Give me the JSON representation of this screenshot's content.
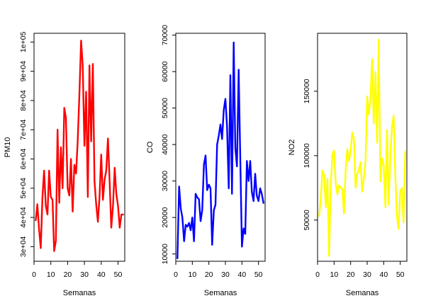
{
  "chart_data": [
    {
      "type": "line",
      "xlabel": "Semanas",
      "ylabel": "PM10",
      "color": "#ff0000",
      "xlim": [
        0,
        54
      ],
      "ylim": [
        25000,
        103000
      ],
      "xticks": [
        0,
        10,
        20,
        30,
        40,
        50
      ],
      "xtick_labels": [
        "0",
        "10",
        "20",
        "30",
        "40",
        "50"
      ],
      "yticks": [
        30000,
        40000,
        50000,
        60000,
        70000,
        80000,
        90000,
        100000
      ],
      "ytick_labels": [
        "3e+04",
        "4e+04",
        "5e+04",
        "6e+04",
        "7e+04",
        "8e+04",
        "9e+04",
        "1e+05"
      ],
      "x": [
        1,
        2,
        3,
        4,
        5,
        6,
        7,
        8,
        9,
        10,
        11,
        12,
        13,
        14,
        15,
        16,
        17,
        18,
        19,
        20,
        21,
        22,
        23,
        24,
        25,
        26,
        27,
        28,
        29,
        30,
        31,
        32,
        33,
        34,
        35,
        36,
        37,
        38,
        39,
        40,
        41,
        42,
        43,
        44,
        45,
        46,
        47,
        48,
        49,
        50,
        51,
        52,
        53
      ],
      "values": [
        39000,
        44500,
        36000,
        29500,
        47000,
        56000,
        44000,
        41000,
        56000,
        47000,
        46000,
        28500,
        32000,
        70000,
        45000,
        64000,
        50000,
        77500,
        74000,
        50000,
        47500,
        60000,
        42000,
        58000,
        55000,
        66000,
        82000,
        100500,
        92000,
        64500,
        83000,
        47000,
        92000,
        66000,
        92500,
        52500,
        44500,
        38500,
        47000,
        61500,
        46000,
        53000,
        56000,
        67000,
        52000,
        36500,
        44000,
        57000,
        48000,
        44000,
        36500,
        41000,
        41000
      ]
    },
    {
      "type": "line",
      "xlabel": "Semanas",
      "ylabel": "CO",
      "color": "#0000ff",
      "xlim": [
        0,
        54
      ],
      "ylim": [
        8000,
        70500
      ],
      "xticks": [
        0,
        10,
        20,
        30,
        40,
        50
      ],
      "xtick_labels": [
        "0",
        "10",
        "20",
        "30",
        "40",
        "50"
      ],
      "yticks": [
        10000,
        20000,
        30000,
        40000,
        50000,
        60000,
        70000
      ],
      "ytick_labels": [
        "10000",
        "20000",
        "30000",
        "40000",
        "50000",
        "60000",
        "70000"
      ],
      "x": [
        1,
        2,
        3,
        4,
        5,
        6,
        7,
        8,
        9,
        10,
        11,
        12,
        13,
        14,
        15,
        16,
        17,
        18,
        19,
        20,
        21,
        22,
        23,
        24,
        25,
        26,
        27,
        28,
        29,
        30,
        31,
        32,
        33,
        34,
        35,
        36,
        37,
        38,
        39,
        40,
        41,
        42,
        43,
        44,
        45,
        46,
        47,
        48,
        49,
        50,
        51,
        52,
        53
      ],
      "values": [
        8800,
        28500,
        22500,
        20000,
        13500,
        18000,
        17500,
        18500,
        16500,
        20000,
        13500,
        26500,
        25500,
        25000,
        19000,
        22000,
        34500,
        37000,
        27500,
        29000,
        28000,
        12500,
        22000,
        23500,
        40000,
        42500,
        45500,
        41500,
        49500,
        52500,
        45000,
        28000,
        59000,
        26500,
        68000,
        39000,
        34000,
        60500,
        36000,
        12000,
        17000,
        15500,
        35500,
        30000,
        35500,
        27000,
        24500,
        32000,
        26000,
        24500,
        28000,
        26500,
        24000
      ]
    },
    {
      "type": "line",
      "xlabel": "Semanas",
      "ylabel": "NO2",
      "color": "#ffff00",
      "xlim": [
        0,
        54
      ],
      "ylim": [
        18000,
        195000
      ],
      "xticks": [
        0,
        10,
        20,
        30,
        40,
        50
      ],
      "xtick_labels": [
        "0",
        "10",
        "20",
        "30",
        "40",
        "50"
      ],
      "yticks": [
        50000,
        100000,
        150000
      ],
      "ytick_labels": [
        "50000",
        "100000",
        "150000"
      ],
      "x": [
        1,
        2,
        3,
        4,
        5,
        6,
        7,
        8,
        9,
        10,
        11,
        12,
        13,
        14,
        15,
        16,
        17,
        18,
        19,
        20,
        21,
        22,
        23,
        24,
        25,
        26,
        27,
        28,
        29,
        30,
        31,
        32,
        33,
        34,
        35,
        36,
        37,
        38,
        39,
        40,
        41,
        42,
        43,
        44,
        45,
        46,
        47,
        48,
        49,
        50,
        51,
        52,
        53
      ],
      "values": [
        53000,
        68000,
        88500,
        85000,
        60000,
        82000,
        22000,
        78000,
        101000,
        104000,
        78000,
        70000,
        77000,
        75000,
        74000,
        55000,
        89000,
        105000,
        96000,
        104000,
        118000,
        113000,
        75000,
        86000,
        89000,
        95000,
        72000,
        82000,
        96000,
        146000,
        132000,
        145000,
        175000,
        125000,
        165000,
        110000,
        190000,
        80000,
        98000,
        93000,
        60000,
        120000,
        62000,
        100000,
        122000,
        131000,
        85000,
        53000,
        43000,
        72000,
        75000,
        48000,
        103000
      ]
    }
  ]
}
